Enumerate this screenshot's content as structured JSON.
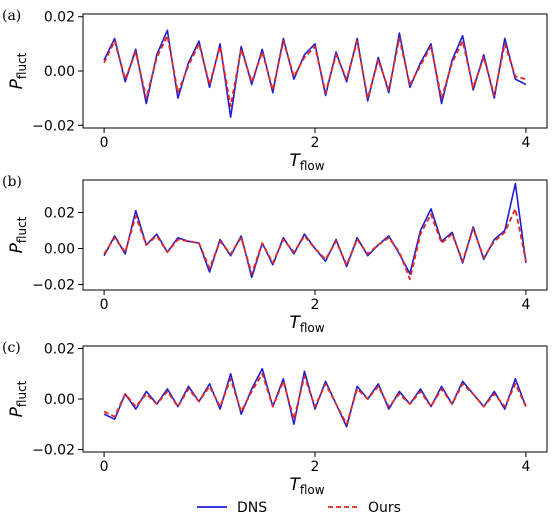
{
  "chart_data": [
    {
      "type": "line",
      "panel_label": "(a)",
      "xlabel_main": "T",
      "xlabel_sub": "flow",
      "ylabel_main": "P",
      "ylabel_sub": "fluct",
      "xlim": [
        -0.2,
        4.2
      ],
      "ylim": [
        -0.021,
        0.021
      ],
      "xticks": [
        0,
        2,
        4
      ],
      "xtick_labels": [
        "0",
        "2",
        "4"
      ],
      "yticks": [
        -0.02,
        0.0,
        0.02
      ],
      "ytick_labels": [
        "−0.02",
        "0.00",
        "0.02"
      ],
      "x": [
        0,
        0.1,
        0.2,
        0.3,
        0.4,
        0.5,
        0.6,
        0.7,
        0.8,
        0.9,
        1.0,
        1.1,
        1.2,
        1.3,
        1.4,
        1.5,
        1.6,
        1.7,
        1.8,
        1.9,
        2.0,
        2.1,
        2.2,
        2.3,
        2.4,
        2.5,
        2.6,
        2.7,
        2.8,
        2.9,
        3.0,
        3.1,
        3.2,
        3.3,
        3.4,
        3.5,
        3.6,
        3.7,
        3.8,
        3.9,
        4.0
      ],
      "series": [
        {
          "name": "DNS",
          "color": "#1f1fd6",
          "style": "solid",
          "values": [
            0.004,
            0.012,
            -0.004,
            0.008,
            -0.012,
            0.006,
            0.015,
            -0.01,
            0.003,
            0.011,
            -0.006,
            0.01,
            -0.017,
            0.009,
            -0.005,
            0.008,
            -0.008,
            0.012,
            -0.003,
            0.006,
            0.01,
            -0.009,
            0.007,
            -0.004,
            0.012,
            -0.011,
            0.005,
            -0.008,
            0.014,
            -0.006,
            0.003,
            0.01,
            -0.012,
            0.004,
            0.013,
            -0.007,
            0.006,
            -0.01,
            0.012,
            -0.003,
            -0.005
          ]
        },
        {
          "name": "Ours",
          "color": "#e8261f",
          "style": "dashed",
          "values": [
            0.003,
            0.011,
            -0.003,
            0.007,
            -0.01,
            0.005,
            0.013,
            -0.008,
            0.002,
            0.01,
            -0.005,
            0.009,
            -0.013,
            0.008,
            -0.004,
            0.007,
            -0.007,
            0.011,
            -0.002,
            0.005,
            0.009,
            -0.008,
            0.006,
            -0.003,
            0.011,
            -0.01,
            0.004,
            -0.007,
            0.012,
            -0.005,
            0.002,
            0.009,
            -0.01,
            0.003,
            0.011,
            -0.006,
            0.005,
            -0.009,
            0.01,
            -0.002,
            -0.003
          ]
        }
      ]
    },
    {
      "type": "line",
      "panel_label": "(b)",
      "xlabel_main": "T",
      "xlabel_sub": "flow",
      "ylabel_main": "P",
      "ylabel_sub": "fluct",
      "xlim": [
        -0.2,
        4.2
      ],
      "ylim": [
        -0.023,
        0.038
      ],
      "xticks": [
        0,
        2,
        4
      ],
      "xtick_labels": [
        "0",
        "2",
        "4"
      ],
      "yticks": [
        -0.02,
        0.0,
        0.02
      ],
      "ytick_labels": [
        "−0.02",
        "0.00",
        "0.02"
      ],
      "x": [
        0,
        0.1,
        0.2,
        0.3,
        0.4,
        0.5,
        0.6,
        0.7,
        0.8,
        0.9,
        1.0,
        1.1,
        1.2,
        1.3,
        1.4,
        1.5,
        1.6,
        1.7,
        1.8,
        1.9,
        2.0,
        2.1,
        2.2,
        2.3,
        2.4,
        2.5,
        2.6,
        2.7,
        2.8,
        2.9,
        3.0,
        3.1,
        3.2,
        3.3,
        3.4,
        3.5,
        3.6,
        3.7,
        3.8,
        3.9,
        4.0
      ],
      "series": [
        {
          "name": "DNS",
          "color": "#1f1fd6",
          "style": "solid",
          "values": [
            -0.004,
            0.007,
            -0.003,
            0.021,
            0.002,
            0.008,
            -0.002,
            0.006,
            0.004,
            0.003,
            -0.013,
            0.005,
            -0.004,
            0.007,
            -0.016,
            0.003,
            -0.009,
            0.006,
            -0.003,
            0.008,
            0.0,
            -0.007,
            0.005,
            -0.01,
            0.006,
            -0.004,
            0.002,
            0.007,
            -0.003,
            -0.014,
            0.01,
            0.022,
            0.004,
            0.009,
            -0.008,
            0.012,
            -0.006,
            0.005,
            0.01,
            0.036,
            -0.008
          ]
        },
        {
          "name": "Ours",
          "color": "#e8261f",
          "style": "dashed",
          "values": [
            -0.003,
            0.006,
            -0.002,
            0.018,
            0.002,
            0.007,
            -0.002,
            0.005,
            0.004,
            0.003,
            -0.011,
            0.004,
            -0.003,
            0.006,
            -0.014,
            0.003,
            -0.008,
            0.005,
            -0.002,
            0.007,
            0.0,
            -0.006,
            0.004,
            -0.009,
            0.005,
            -0.003,
            0.002,
            0.006,
            -0.002,
            -0.017,
            0.008,
            0.019,
            0.003,
            0.008,
            -0.007,
            0.011,
            -0.005,
            0.004,
            0.009,
            0.022,
            -0.007
          ]
        }
      ]
    },
    {
      "type": "line",
      "panel_label": "(c)",
      "xlabel_main": "T",
      "xlabel_sub": "flow",
      "ylabel_main": "P",
      "ylabel_sub": "fluct",
      "xlim": [
        -0.2,
        4.2
      ],
      "ylim": [
        -0.021,
        0.021
      ],
      "xticks": [
        0,
        2,
        4
      ],
      "xtick_labels": [
        "0",
        "2",
        "4"
      ],
      "yticks": [
        -0.02,
        0.0,
        0.02
      ],
      "ytick_labels": [
        "−0.02",
        "0.00",
        "0.02"
      ],
      "x": [
        0,
        0.1,
        0.2,
        0.3,
        0.4,
        0.5,
        0.6,
        0.7,
        0.8,
        0.9,
        1.0,
        1.1,
        1.2,
        1.3,
        1.4,
        1.5,
        1.6,
        1.7,
        1.8,
        1.9,
        2.0,
        2.1,
        2.2,
        2.3,
        2.4,
        2.5,
        2.6,
        2.7,
        2.8,
        2.9,
        3.0,
        3.1,
        3.2,
        3.3,
        3.4,
        3.5,
        3.6,
        3.7,
        3.8,
        3.9,
        4.0
      ],
      "series": [
        {
          "name": "DNS",
          "color": "#1f1fd6",
          "style": "solid",
          "values": [
            -0.006,
            -0.008,
            0.002,
            -0.004,
            0.003,
            -0.002,
            0.004,
            -0.003,
            0.005,
            -0.001,
            0.006,
            -0.004,
            0.01,
            -0.006,
            0.004,
            0.012,
            -0.003,
            0.008,
            -0.01,
            0.011,
            -0.004,
            0.007,
            -0.002,
            -0.011,
            0.005,
            0.0,
            0.006,
            -0.004,
            0.003,
            -0.002,
            0.004,
            -0.003,
            0.005,
            -0.002,
            0.007,
            0.002,
            -0.003,
            0.003,
            -0.004,
            0.008,
            -0.003
          ]
        },
        {
          "name": "Ours",
          "color": "#e8261f",
          "style": "dashed",
          "values": [
            -0.005,
            -0.007,
            0.002,
            -0.003,
            0.002,
            -0.002,
            0.003,
            -0.003,
            0.004,
            -0.001,
            0.005,
            -0.003,
            0.008,
            -0.005,
            0.003,
            0.01,
            -0.003,
            0.007,
            -0.008,
            0.009,
            -0.003,
            0.006,
            -0.002,
            -0.01,
            0.004,
            0.0,
            0.005,
            -0.003,
            0.002,
            -0.002,
            0.003,
            -0.003,
            0.004,
            -0.002,
            0.006,
            0.002,
            -0.003,
            0.002,
            -0.003,
            0.006,
            -0.003
          ]
        }
      ]
    }
  ],
  "legend": {
    "position": "bottom",
    "entries": [
      {
        "label": "DNS",
        "color": "#1f1fd6",
        "style": "solid"
      },
      {
        "label": "Ours",
        "color": "#e8261f",
        "style": "dashed"
      }
    ]
  }
}
